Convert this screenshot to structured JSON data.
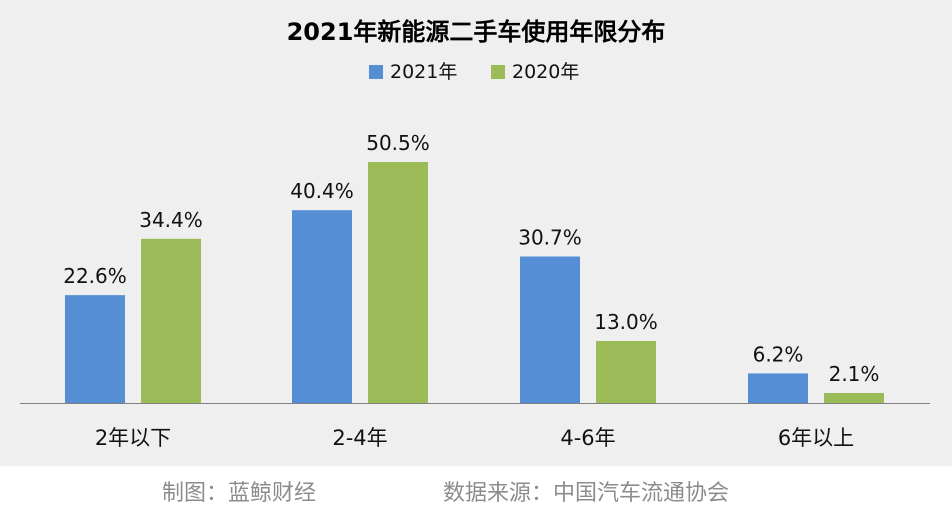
{
  "chart_data": {
    "type": "bar",
    "title": "2021年新能源二手车使用年限分布",
    "categories": [
      "2年以下",
      "2-4年",
      "4-6年",
      "6年以上"
    ],
    "series": [
      {
        "name": "2021年",
        "values": [
          22.6,
          40.4,
          30.7,
          6.2
        ],
        "labels": [
          "22.6%",
          "40.4%",
          "30.7%",
          "6.2%"
        ],
        "color": "#558ed5"
      },
      {
        "name": "2020年",
        "values": [
          34.4,
          50.5,
          13.0,
          2.1
        ],
        "labels": [
          "34.4%",
          "50.5%",
          "13.0%",
          "2.1%"
        ],
        "color": "#9bbb59"
      }
    ],
    "ylim": [
      0,
      50.5
    ],
    "grid": false,
    "legend_position": "top"
  },
  "footer": {
    "credit": "制图：蓝鲸财经",
    "source": "数据来源：中国汽车流通协会"
  }
}
